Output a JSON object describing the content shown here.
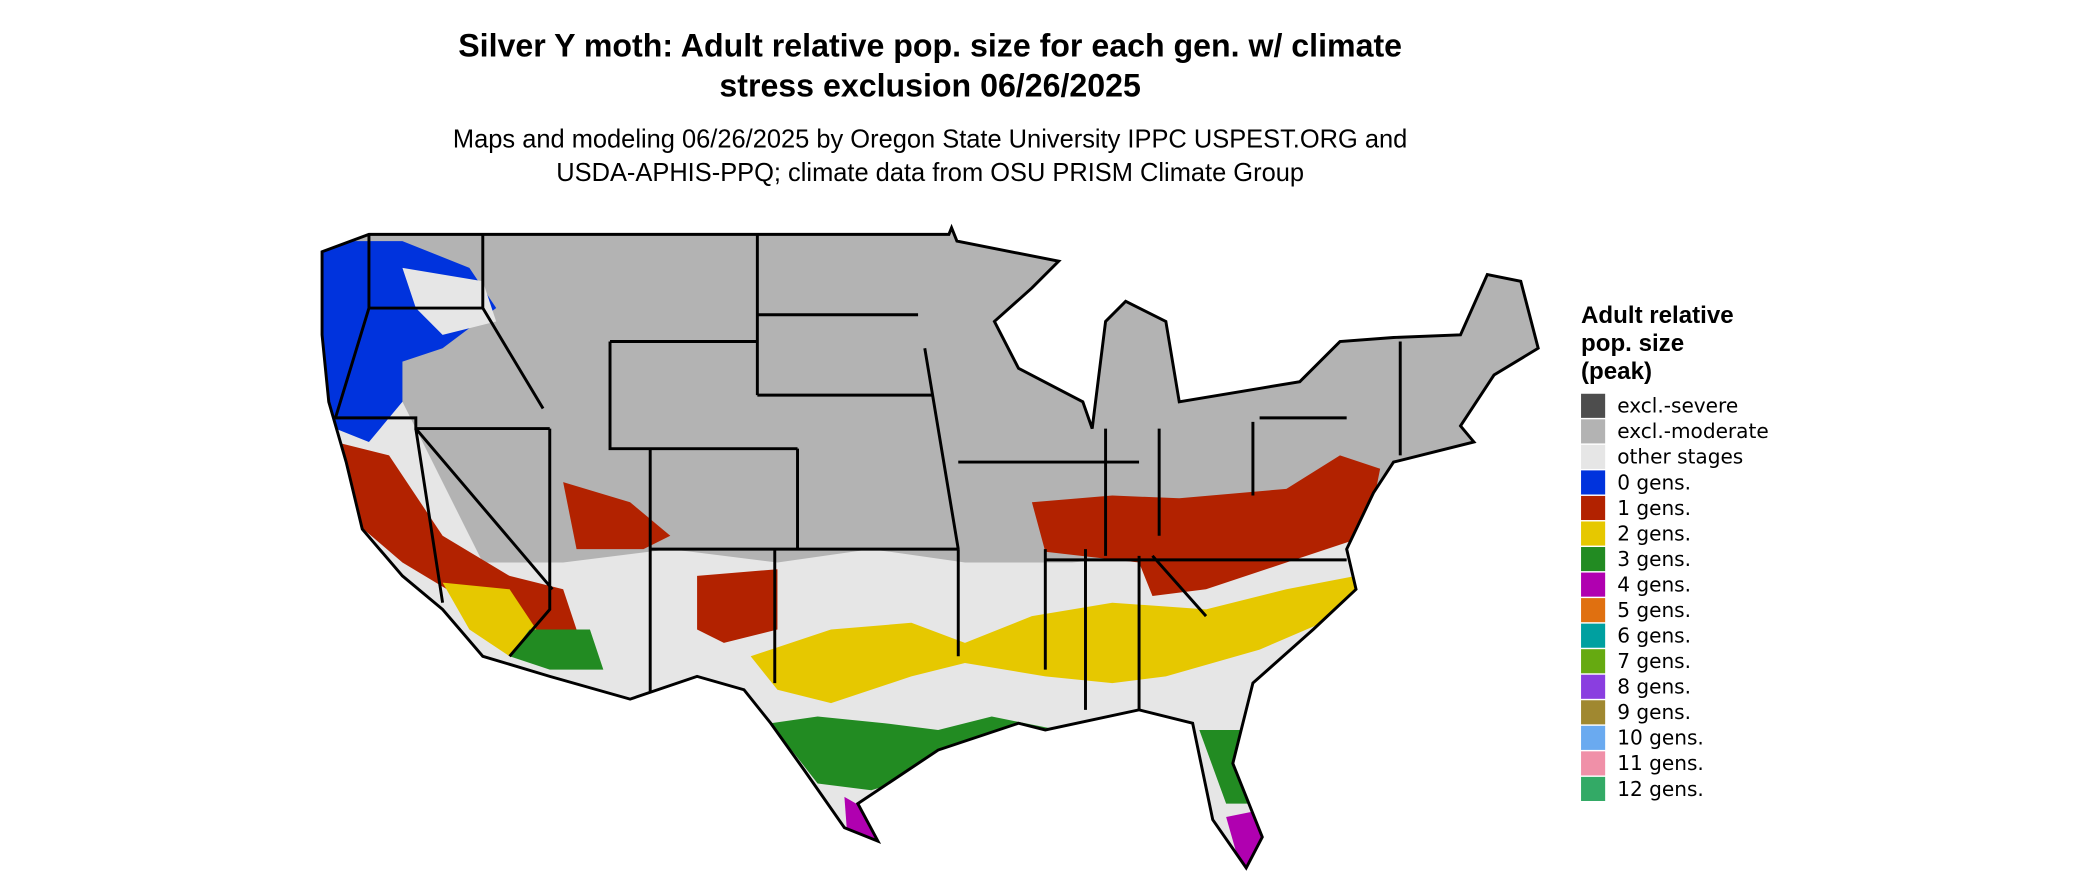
{
  "title": [
    "Silver Y moth: Adult relative pop. size for each gen. w/ climate",
    "stress exclusion 06/26/2025"
  ],
  "subtitle": [
    "Maps and modeling 06/26/2025 by Oregon State University IPPC USPEST.ORG and",
    "USDA-APHIS-PPQ; climate data from OSU PRISM Climate Group"
  ],
  "legend": {
    "title": [
      "Adult relative",
      "pop. size",
      "(peak)"
    ],
    "items": [
      {
        "label": "excl.-severe",
        "color": "#4d4d4d"
      },
      {
        "label": "excl.-moderate",
        "color": "#b3b3b3"
      },
      {
        "label": "other stages",
        "color": "#e6e6e6"
      },
      {
        "label": "0 gens.",
        "color": "#0033dd"
      },
      {
        "label": "1 gens.",
        "color": "#b22200"
      },
      {
        "label": "2 gens.",
        "color": "#e6c800"
      },
      {
        "label": "3 gens.",
        "color": "#228b22"
      },
      {
        "label": "4 gens.",
        "color": "#b000b0"
      },
      {
        "label": "5 gens.",
        "color": "#e07010"
      },
      {
        "label": "6 gens.",
        "color": "#00a0a0"
      },
      {
        "label": "7 gens.",
        "color": "#66aa11"
      },
      {
        "label": "8 gens.",
        "color": "#8a3ee0"
      },
      {
        "label": "9 gens.",
        "color": "#a08830"
      },
      {
        "label": "10 gens.",
        "color": "#6aaaf0"
      },
      {
        "label": "11 gens.",
        "color": "#f090a8"
      },
      {
        "label": "12 gens.",
        "color": "#33aa66"
      }
    ]
  }
}
